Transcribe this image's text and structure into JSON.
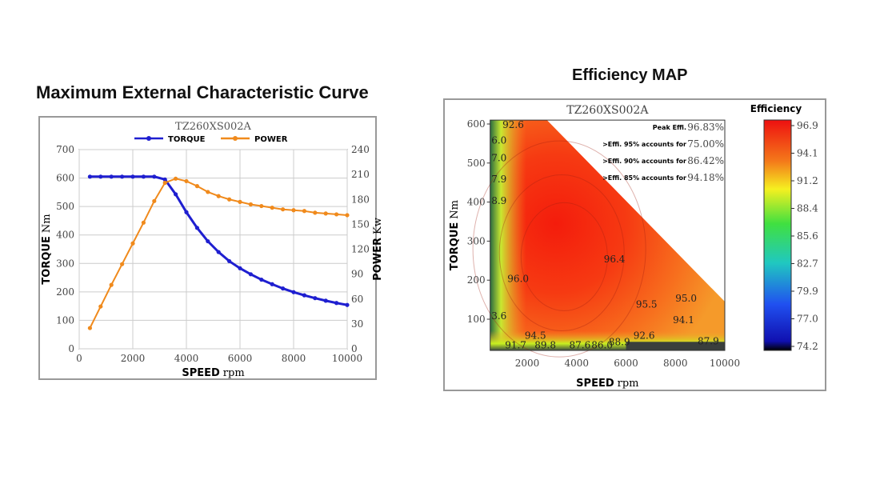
{
  "headings": {
    "left": "Maximum External Characteristic Curve",
    "right": "Efficiency MAP"
  },
  "chart_data": [
    {
      "type": "line",
      "title": "TZ260XS002A",
      "xlabel": "SPEED",
      "xunit": "rpm",
      "ylabel": "TORQUE",
      "yunit": "Nm",
      "y2label": "POWER",
      "y2unit": "Kw",
      "xlim": [
        0,
        10000
      ],
      "ylim": [
        0,
        700
      ],
      "y2lim": [
        0,
        240
      ],
      "grid": true,
      "legend": "top",
      "xticks": [
        "0",
        "2000",
        "4000",
        "6000",
        "8000",
        "10000"
      ],
      "yticks": [
        "0",
        "100",
        "200",
        "300",
        "400",
        "500",
        "600",
        "700"
      ],
      "y2ticks": [
        "0",
        "30",
        "60",
        "90",
        "120",
        "150",
        "180",
        "210",
        "240"
      ],
      "x": [
        400,
        800,
        1200,
        1600,
        2000,
        2400,
        2800,
        3200,
        3600,
        4000,
        4400,
        4800,
        5200,
        5600,
        6000,
        6400,
        6800,
        7200,
        7600,
        8000,
        8400,
        8800,
        9200,
        9600,
        10000
      ],
      "series": [
        {
          "name": "TORQUE",
          "axis": "left",
          "color": "#1f1fd0",
          "values": [
            605,
            605,
            605,
            605,
            605,
            605,
            605,
            595,
            543,
            480,
            425,
            378,
            340,
            308,
            283,
            262,
            243,
            227,
            212,
            199,
            188,
            178,
            169,
            161,
            154
          ]
        },
        {
          "name": "POWER",
          "axis": "right",
          "color": "#f08a1c",
          "values": [
            25,
            51,
            77,
            102,
            127,
            152,
            178,
            200,
            205,
            202,
            196,
            189,
            184,
            180,
            177,
            174,
            172,
            170,
            168,
            167,
            166,
            164,
            163,
            162,
            161
          ]
        }
      ]
    },
    {
      "type": "heatmap",
      "title": "TZ260XS002A",
      "xlabel": "SPEED",
      "xunit": "rpm",
      "ylabel": "TORQUE",
      "yunit": "Nm",
      "xlim": [
        500,
        10000
      ],
      "ylim": [
        20,
        610
      ],
      "xticks": [
        "2000",
        "4000",
        "6000",
        "8000",
        "10000"
      ],
      "yticks": [
        "100",
        "200",
        "300",
        "400",
        "500",
        "600"
      ],
      "colorbar": {
        "title": "Efficiency",
        "ticks": [
          "96.9",
          "94.1",
          "91.2",
          "88.4",
          "85.6",
          "82.7",
          "79.9",
          "77.0",
          "74.2"
        ]
      },
      "stats": [
        {
          "label": "Peak Effi.",
          "value": "96.83%"
        },
        {
          "label": ">Effi. 95% accounts for",
          "value": "75.00%"
        },
        {
          "label": ">Effi. 90% accounts for",
          "value": "86.42%"
        },
        {
          "label": ">Effi. 85% accounts for",
          "value": "94.18%"
        }
      ],
      "contour_labels": [
        {
          "text": "92.6",
          "x": 1000,
          "y": 590
        },
        {
          "text": "6.0",
          "x": 550,
          "y": 550
        },
        {
          "text": "7.0",
          "x": 550,
          "y": 505
        },
        {
          "text": "7.9",
          "x": 550,
          "y": 450
        },
        {
          "text": "8.9",
          "x": 550,
          "y": 395
        },
        {
          "text": "96.4",
          "x": 5100,
          "y": 245
        },
        {
          "text": "96.0",
          "x": 1200,
          "y": 195
        },
        {
          "text": "95.5",
          "x": 6400,
          "y": 130
        },
        {
          "text": "95.0",
          "x": 8000,
          "y": 145
        },
        {
          "text": "3.6",
          "x": 550,
          "y": 100
        },
        {
          "text": "94.1",
          "x": 7900,
          "y": 90
        },
        {
          "text": "94.5",
          "x": 1900,
          "y": 50
        },
        {
          "text": "92.6",
          "x": 6300,
          "y": 50
        },
        {
          "text": "91.7",
          "x": 1100,
          "y": 25
        },
        {
          "text": "89.8",
          "x": 2300,
          "y": 25
        },
        {
          "text": "87.6",
          "x": 3700,
          "y": 25
        },
        {
          "text": "86.0",
          "x": 4600,
          "y": 25
        },
        {
          "text": "88.9",
          "x": 5300,
          "y": 33
        },
        {
          "text": "87.9",
          "x": 8900,
          "y": 35
        }
      ]
    }
  ]
}
